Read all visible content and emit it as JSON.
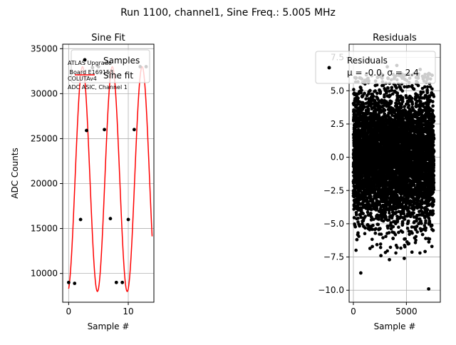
{
  "suptitle": "Run 1100, channel1, Sine Freq.: 5.005 MHz",
  "chart_data": [
    {
      "type": "scatter",
      "title": "Sine Fit",
      "xlabel": "Sample #",
      "ylabel": "ADC Counts",
      "xlim": [
        -1,
        14.3
      ],
      "ylim": [
        6800,
        35500
      ],
      "xticks": [
        0,
        10
      ],
      "yticks": [
        10000,
        15000,
        20000,
        25000,
        30000,
        35000
      ],
      "grid": true,
      "legend_position": "top-right",
      "annotation": [
        "ATLAS Upgrade",
        " Board E169153",
        "COLUTAv4",
        "ADC ASIC, Channel 1"
      ],
      "series": [
        {
          "name": "Samples",
          "kind": "points",
          "color": "#000000",
          "x": [
            0,
            1,
            2,
            3,
            4,
            5,
            6,
            7,
            8,
            9,
            10,
            11,
            12,
            13
          ],
          "y": [
            9000,
            8900,
            16000,
            25900,
            32900,
            33000,
            26000,
            16100,
            9000,
            9000,
            16000,
            26000,
            33000,
            33000
          ]
        },
        {
          "name": "Sine fit",
          "kind": "line",
          "color": "#ff0000",
          "fit": {
            "offset": 20500,
            "amplitude": 12500,
            "period": 5.0,
            "phase": -1.35,
            "x_range": [
              0,
              14
            ]
          }
        }
      ]
    },
    {
      "type": "scatter",
      "title": "Residuals",
      "xlabel": "Sample #",
      "ylabel": "",
      "xlim": [
        -400,
        8200
      ],
      "ylim": [
        -10.9,
        8.5
      ],
      "xticks": [
        0,
        5000
      ],
      "yticks": [
        -10.0,
        -7.5,
        -5.0,
        -2.5,
        0.0,
        2.5,
        5.0,
        7.5
      ],
      "grid": true,
      "legend_position": "top-right",
      "series": [
        {
          "name": "Residuals",
          "legend_lines": [
            "Residuals",
            "μ = -0.0, σ = 2.4"
          ],
          "color": "#000000",
          "x_range": [
            0,
            7600
          ],
          "mean": 0.0,
          "std": 2.4,
          "count": 7600,
          "outliers": [
            {
              "x": 700,
              "y": -8.7
            },
            {
              "x": 7100,
              "y": -9.9
            },
            {
              "x": 3400,
              "y": -7.7
            },
            {
              "x": 4800,
              "y": -7.6
            },
            {
              "x": 2600,
              "y": -7.4
            },
            {
              "x": 1500,
              "y": 7.3
            },
            {
              "x": 4100,
              "y": 6.9
            },
            {
              "x": 3200,
              "y": 6.8
            },
            {
              "x": 6300,
              "y": 6.6
            }
          ]
        }
      ]
    }
  ]
}
